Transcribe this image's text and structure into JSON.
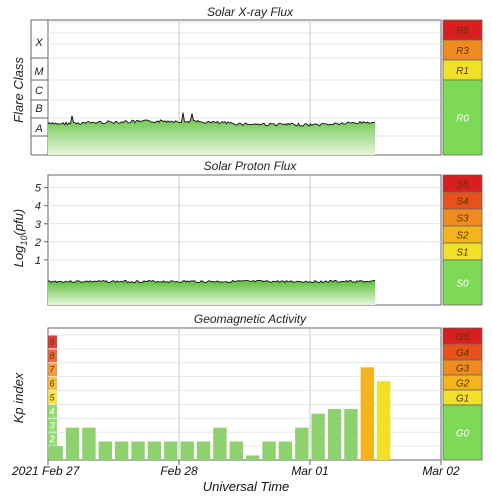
{
  "chart_data": [
    {
      "type": "line",
      "title": "Solar X-ray Flux",
      "ylabel": "Flare Class",
      "y_scale": "log",
      "y_classes": [
        "A",
        "B",
        "C",
        "M",
        "X"
      ],
      "scale": [
        {
          "label": "R5",
          "color": "#d81e1e"
        },
        {
          "label": "R3",
          "color": "#f08c1e"
        },
        {
          "label": "R1",
          "color": "#f0e028"
        },
        {
          "label": "R0",
          "color": "#7ed957"
        }
      ],
      "series": [
        {
          "x": [
            "2021-02-27 00:00",
            "2021-02-27 12:00",
            "2021-02-28 00:00",
            "2021-02-28 12:00",
            "2021-03-01 00:00",
            "2021-03-01 12:00"
          ],
          "class_values": [
            1.2,
            1.3,
            1.35,
            1.2,
            1.15,
            1.3
          ]
        }
      ]
    },
    {
      "type": "line",
      "title": "Solar Proton Flux",
      "ylabel": "Log10(pfu)",
      "ylabel_main": "Log",
      "ylabel_sub": "10",
      "ylabel_end": "(pfu)",
      "yticks": [
        "5",
        "4",
        "3",
        "2",
        "1"
      ],
      "ylim": [
        -1.5,
        5.7
      ],
      "scale": [
        {
          "label": "S5",
          "color": "#d81e1e"
        },
        {
          "label": "S4",
          "color": "#e8501e"
        },
        {
          "label": "S3",
          "color": "#f08c1e"
        },
        {
          "label": "S2",
          "color": "#f5b41e"
        },
        {
          "label": "S1",
          "color": "#f0e028"
        },
        {
          "label": "S0",
          "color": "#7ed957"
        }
      ],
      "series": [
        {
          "x": [
            "2021-02-27 00:00",
            "2021-03-01 12:00"
          ],
          "values": [
            -0.2,
            -0.2
          ]
        }
      ]
    },
    {
      "type": "bar",
      "title": "Geomagnetic Activity",
      "ylabel": "Kp index",
      "yticks": [
        "9",
        "8",
        "7",
        "6",
        "5",
        "4",
        "3",
        "2",
        "1"
      ],
      "ylim": [
        0,
        9.5
      ],
      "scale": [
        {
          "label": "G5",
          "color": "#d81e1e"
        },
        {
          "label": "G4",
          "color": "#e8501e"
        },
        {
          "label": "G3",
          "color": "#f08c1e"
        },
        {
          "label": "G2",
          "color": "#f5b41e"
        },
        {
          "label": "G1",
          "color": "#f0e028"
        },
        {
          "label": "G0",
          "color": "#7ed957"
        }
      ],
      "values": [
        1,
        2.33,
        2.33,
        1.33,
        1.33,
        1.33,
        1.33,
        1.33,
        1.33,
        1.33,
        2.33,
        1.33,
        0.33,
        1.33,
        1.33,
        2.33,
        3.33,
        3.67,
        3.67,
        6.67,
        5.67
      ],
      "bar_colors": {
        "quiet": "#8fd16f",
        "g1": "#f0e028",
        "g2": "#f5b41e"
      }
    }
  ],
  "x_axis": {
    "ticks": [
      "2021 Feb 27",
      "Feb 28",
      "Mar 01",
      "Mar 02"
    ],
    "xlabel": "Universal Time"
  }
}
